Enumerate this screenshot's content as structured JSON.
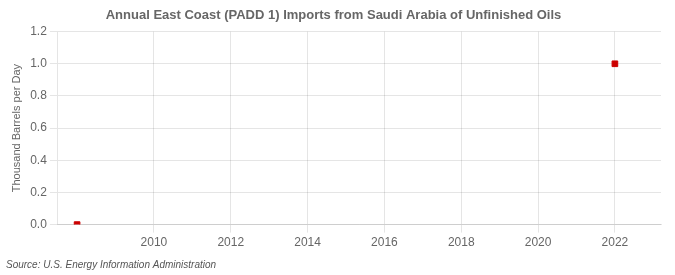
{
  "chart_data": {
    "type": "scatter",
    "title": "Annual East Coast (PADD 1) Imports from Saudi Arabia of Unfinished Oils",
    "ylabel": "Thousand Barrels per Day",
    "annotations": [
      "Source: U.S. Energy Information Administration"
    ],
    "x": [
      2008,
      2022
    ],
    "values": [
      0.0,
      1.0
    ],
    "color": "#cc0000",
    "marker": "square",
    "xlim": [
      2007.5,
      2023.2
    ],
    "xticks": [
      2010,
      2012,
      2014,
      2016,
      2018,
      2020,
      2022
    ],
    "ylim": [
      0.0,
      1.2
    ],
    "yticks": [
      {
        "value": 0,
        "label": "0.0"
      },
      0.2,
      0.4,
      0.6,
      0.8,
      {
        "value": 1,
        "label": "1.0"
      },
      1.2
    ],
    "grid": true
  }
}
